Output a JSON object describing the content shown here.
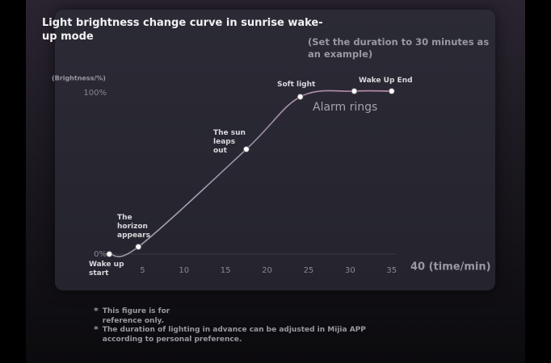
{
  "chart_data": {
    "type": "line",
    "title": "Light brightness change curve in sunrise wake-up mode",
    "subtitle": "(Set the duration to 30 minutes as an example)",
    "y_label": "(Brightness/%)",
    "x_label": "40 (time/min)",
    "x": [
      1,
      4.5,
      17.5,
      24,
      30.5,
      35
    ],
    "series": [
      {
        "name": "Brightness",
        "color": "#c58bb0",
        "values": [
          0,
          4.5,
          65,
          97.5,
          101,
          101
        ]
      }
    ],
    "point_labels": [
      "Wake up start",
      "The horizon appears",
      "The sun leaps out",
      "Soft light",
      null,
      "Wake Up End"
    ],
    "annotation": "Alarm rings",
    "xlim": [
      0,
      36
    ],
    "ylim": [
      0,
      105
    ],
    "xticks": [
      5,
      10,
      15,
      20,
      25,
      30,
      35
    ],
    "yticks": [
      {
        "value": 0,
        "label": "0%"
      },
      {
        "value": 100,
        "label": "100%"
      }
    ],
    "notes": [
      {
        "marker": "*",
        "text": "This figure is for reference only."
      },
      {
        "marker": "*",
        "text": "The duration of lighting in advance can be adjusted in Mijia APP according to personal preference."
      }
    ]
  }
}
